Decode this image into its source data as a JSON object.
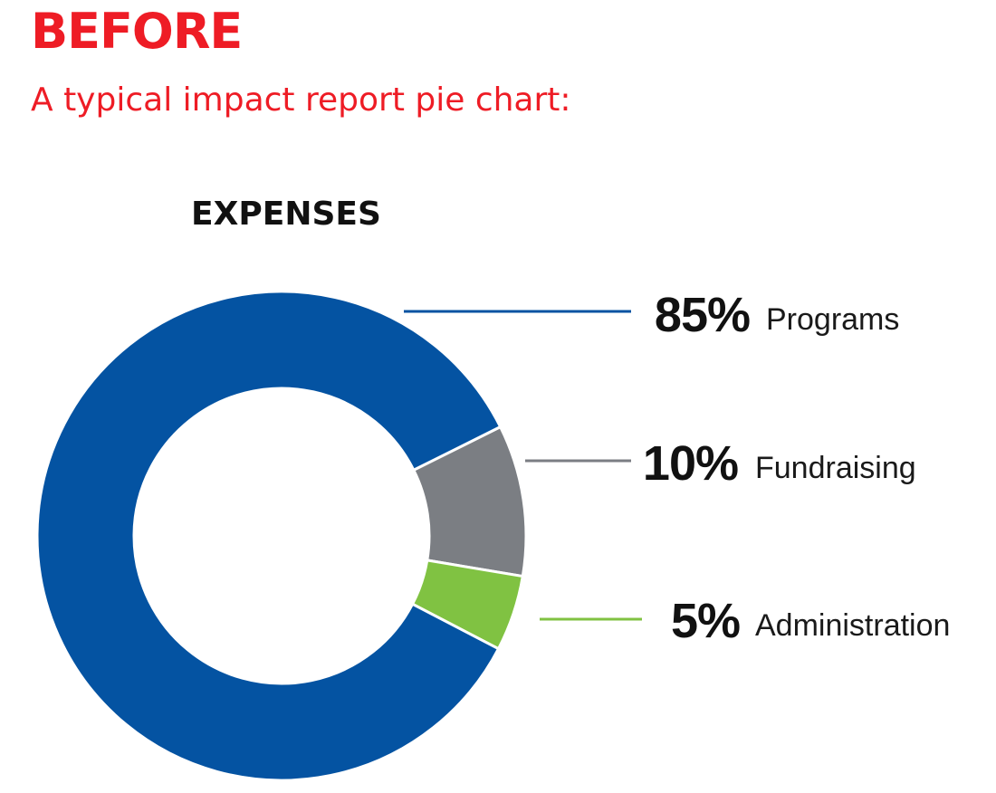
{
  "header": {
    "heading": "BEFORE",
    "subheading": "A typical impact report pie chart:"
  },
  "colors": {
    "accent_red": "#ee1c25",
    "text": "#111111"
  },
  "chart_data": {
    "type": "pie",
    "donut": true,
    "title": "EXPENSES",
    "categories": [
      "Programs",
      "Fundraising",
      "Administration"
    ],
    "values": [
      85,
      10,
      5
    ],
    "value_labels": [
      "85%",
      "10%",
      "5%"
    ],
    "colors": [
      "#0453a2",
      "#7b7e83",
      "#80c242"
    ],
    "legend": "right, leader lines"
  }
}
